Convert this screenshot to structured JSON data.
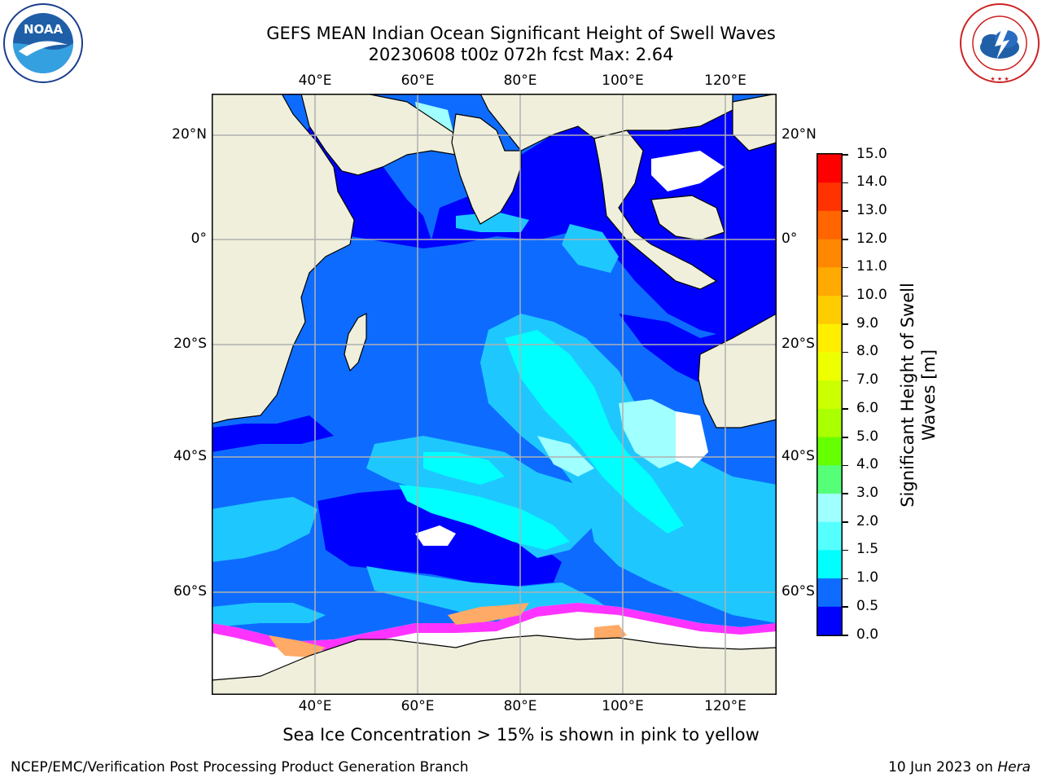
{
  "header": {
    "title_line1": "GEFS MEAN Indian Ocean Significant Height of Swell Waves",
    "title_line2": "20230608 t00z 072h fcst   Max: 2.64"
  },
  "logos": {
    "left": {
      "name": "noaa-logo",
      "text": "NOAA",
      "ring_text": "NATIONAL OCEANIC AND ATMOSPHERIC ADMINISTRATION · U.S. DEPARTMENT OF COMMERCE"
    },
    "right": {
      "name": "nws-logo",
      "ring_text": "NATIONAL WEATHER SERVICE"
    }
  },
  "map": {
    "lon_ticks_top": [
      "40°E",
      "60°E",
      "80°E",
      "100°E",
      "120°E"
    ],
    "lon_ticks_bottom": [
      "40°E",
      "60°E",
      "80°E",
      "100°E",
      "120°E"
    ],
    "lat_ticks_left": [
      "20°N",
      "0°",
      "20°S",
      "40°S",
      "60°S"
    ],
    "lat_ticks_right": [
      "20°N",
      "0°",
      "20°S",
      "40°S",
      "60°S"
    ],
    "lon_values": [
      40,
      60,
      80,
      100,
      120
    ],
    "lat_values": [
      20,
      0,
      -20,
      -40,
      -60
    ],
    "colors": {
      "land": "#efefdc",
      "ocean_low": "#0000ff",
      "swell_0_5": "#0d6cff",
      "swell_1_0": "#1ec8ff",
      "swell_1_5": "#00ffff",
      "swell_2_0": "#a0ffff",
      "sea_ice_pink": "#ff33ff",
      "sea_ice_orange": "#ffaa66",
      "ice_white": "#ffffff",
      "grid": "#b0b0b0"
    }
  },
  "colorbar": {
    "label_line1": "Significant Height of Swell",
    "label_line2": "Waves [m]",
    "ticks": [
      "15.0",
      "14.0",
      "13.0",
      "12.0",
      "11.0",
      "10.0",
      "9.0",
      "8.0",
      "7.0",
      "6.0",
      "5.0",
      "4.0",
      "3.0",
      "2.0",
      "1.5",
      "1.0",
      "0.5",
      "0.0"
    ],
    "colors": [
      "#ff0000",
      "#ff3300",
      "#ff6600",
      "#ff8800",
      "#ffaa00",
      "#ffcc00",
      "#ffee00",
      "#eeff00",
      "#ccff00",
      "#aaff00",
      "#66ff00",
      "#00dd00",
      "#44ff66",
      "#66ff99",
      "#a0ffff",
      "#55ffff",
      "#00ffff",
      "#0d6cff",
      "#0000ff"
    ]
  },
  "footer": {
    "note": "Sea Ice Concentration > 15% is shown in pink to yellow",
    "left": "NCEP/EMC/Verification Post Processing Product Generation Branch",
    "right_date": "10 Jun 2023 on ",
    "right_host": "Hera"
  }
}
